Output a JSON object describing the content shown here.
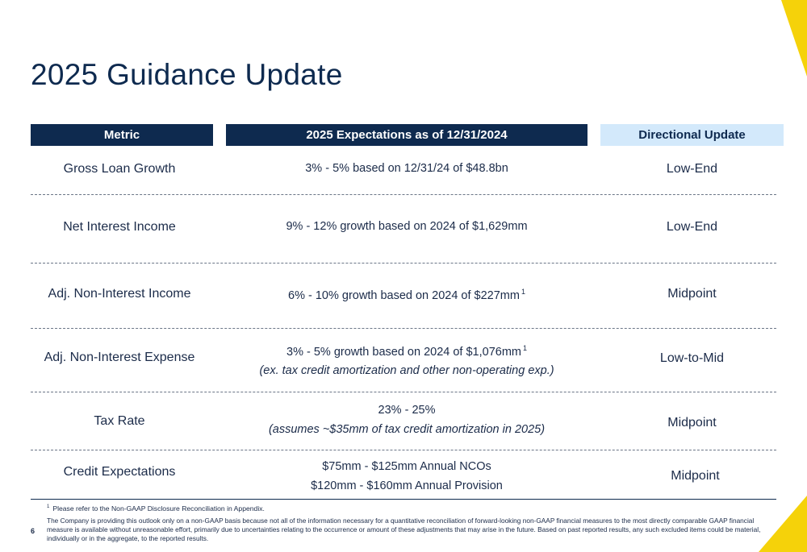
{
  "title": "2025 Guidance Update",
  "headers": {
    "metric": "Metric",
    "expectations": "2025 Expectations as of 12/31/2024",
    "direction": "Directional Update"
  },
  "rows": [
    {
      "metric": "Gross Loan Growth",
      "line1": "3% - 5% based on 12/31/24 of $48.8bn",
      "line2": "",
      "direction": "Low-End"
    },
    {
      "metric": "Net Interest Income",
      "line1": "9% - 12% growth based on 2024 of $1,629mm",
      "line2": "",
      "direction": "Low-End"
    },
    {
      "metric": "Adj. Non-Interest Income",
      "line1": "6% - 10% growth based on 2024 of $227mm",
      "sup1": "1",
      "line2": "",
      "direction": "Midpoint"
    },
    {
      "metric": "Adj. Non-Interest Expense",
      "line1": "3% - 5% growth based on 2024 of $1,076mm",
      "sup1": "1",
      "line2": "(ex. tax credit amortization and other non-operating exp.)",
      "direction": "Low-to-Mid"
    },
    {
      "metric": "Tax Rate",
      "line1": "23% - 25%",
      "line2": "(assumes ~$35mm of tax credit amortization in 2025)",
      "direction": "Midpoint"
    },
    {
      "metric": "Credit Expectations",
      "line1": "$75mm - $125mm Annual NCOs",
      "line2": "$120mm - $160mm Annual Provision",
      "direction": "Midpoint"
    }
  ],
  "footnote": {
    "mark": "1",
    "text": "Please refer to the Non-GAAP Disclosure Reconciliation in Appendix."
  },
  "page_number": "6",
  "disclaimer": "The Company is providing this outlook only on a non-GAAP basis because not all of the information necessary for a quantitative reconciliation of forward-looking non-GAAP financial measures to the most directly comparable GAAP financial measure is available without unreasonable effort, primarily due to uncertainties relating to the occurrence or amount of these adjustments that may arise in the future. Based on past reported results, any such excluded items could be material, individually or in the aggregate, to the reported results.",
  "colors": {
    "navy": "#0e2a4f",
    "light_blue": "#d3e9fb",
    "accent_yellow": "#f5d20a"
  }
}
